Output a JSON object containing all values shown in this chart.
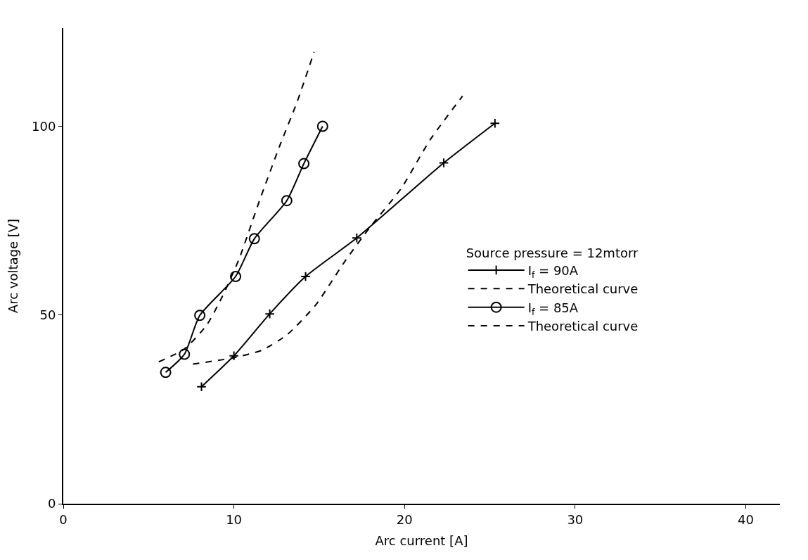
{
  "chart_data": {
    "type": "line",
    "xlabel": "Arc current [A]",
    "ylabel": "Arc voltage [V]",
    "legend_title": "Source pressure = 12mtorr",
    "legend": "right",
    "xlim": [
      0,
      42
    ],
    "xticks": [
      0,
      10,
      20,
      30,
      40
    ],
    "ylim": [
      0,
      126
    ],
    "yticks": [
      0,
      50,
      100
    ],
    "series": [
      {
        "name": "I$_{f}$ = 90A",
        "color": "#000000",
        "marker": "cross",
        "line_style": "solid",
        "x": [
          8.1,
          10.0,
          12.1,
          14.2,
          17.2,
          22.3,
          25.3
        ],
        "values": [
          31,
          39.2,
          50.3,
          60.2,
          70.4,
          90.3,
          100.8
        ]
      },
      {
        "name": "Theoretical curve",
        "color": "#000000",
        "marker": "none",
        "line_style": "dashed",
        "x": [
          7.6,
          9.9,
          11.6,
          13.1,
          14.8,
          16.5,
          18.0,
          19.8,
          21.5,
          23.4
        ],
        "values": [
          37,
          38.6,
          40.6,
          44.7,
          52.7,
          64.2,
          73.4,
          83.5,
          96.4,
          108
        ]
      },
      {
        "name": "I$_{f}$ = 85A",
        "color": "#000000",
        "marker": "circle",
        "line_style": "solid",
        "x": [
          6.0,
          7.1,
          8.0,
          10.1,
          11.2,
          13.1,
          14.1,
          15.2
        ],
        "values": [
          34.8,
          39.6,
          49.9,
          60.2,
          70.2,
          80.3,
          90.1,
          100
        ]
      },
      {
        "name": "Theoretical curve",
        "color": "#000000",
        "marker": "none",
        "line_style": "dashed",
        "x": [
          5.6,
          7.1,
          8.4,
          9.3,
          10.3,
          11.5,
          12.7,
          13.7,
          14.7
        ],
        "values": [
          37.6,
          41,
          47.3,
          54.7,
          64.8,
          80.3,
          95,
          106.4,
          119.7
        ]
      }
    ]
  }
}
